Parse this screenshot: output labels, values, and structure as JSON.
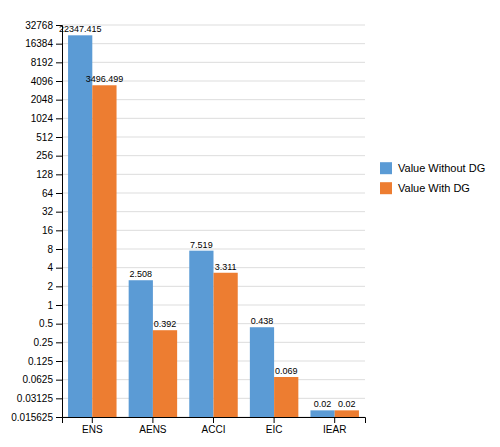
{
  "chart_data": {
    "type": "bar",
    "categories": [
      "ENS",
      "AENS",
      "ACCI",
      "EIC",
      "IEAR"
    ],
    "series": [
      {
        "name": "Value Without DG",
        "color": "#5B9BD5",
        "values": [
          22347.415,
          2.508,
          7.519,
          0.438,
          0.02
        ]
      },
      {
        "name": "Value With DG",
        "color": "#ED7D31",
        "values": [
          3496.499,
          0.392,
          3.311,
          0.069,
          0.02
        ]
      }
    ],
    "ylim": [
      0.015625,
      32768
    ],
    "yticks": [
      0.015625,
      0.03125,
      0.0625,
      0.125,
      0.25,
      0.5,
      1,
      2,
      4,
      8,
      16,
      32,
      64,
      128,
      256,
      512,
      1024,
      2048,
      4096,
      8192,
      16384,
      32768
    ],
    "log": "y",
    "grid": true,
    "legend": "right",
    "data_labels": true
  }
}
